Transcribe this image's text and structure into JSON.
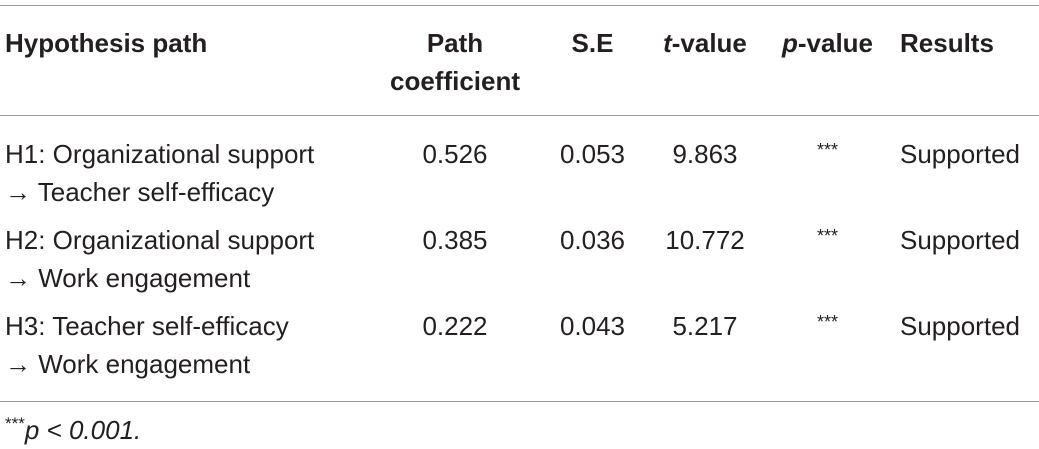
{
  "table": {
    "header": [
      [
        "Hypothesis path"
      ],
      [
        "Path coefficient"
      ],
      [
        "S.E"
      ],
      [
        "t",
        "-value"
      ],
      [
        "p",
        "-value"
      ],
      [
        "Results"
      ]
    ],
    "rows": [
      [
        [
          "H1: Organizational support",
          "→ Teacher self-efficacy"
        ],
        "0.526",
        "0.053",
        "9.863",
        "***",
        "Supported"
      ],
      [
        [
          "H2: Organizational support",
          "→ Work engagement"
        ],
        "0.385",
        "0.036",
        "10.772",
        "***",
        "Supported"
      ],
      [
        [
          "H3: Teacher self-efficacy",
          "→ Work engagement"
        ],
        "0.222",
        "0.043",
        "5.217",
        "***",
        "Supported"
      ]
    ],
    "footnote": [
      "***",
      "p",
      " < 0.001."
    ]
  }
}
